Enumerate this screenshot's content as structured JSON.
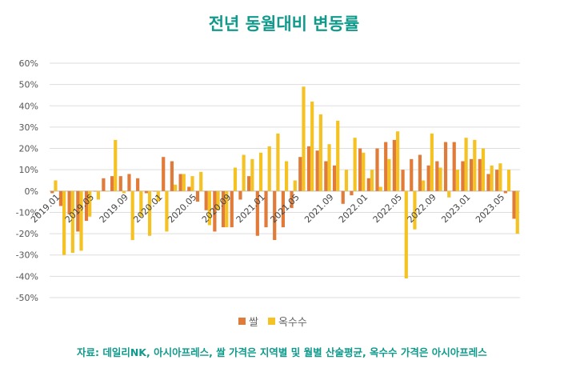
{
  "title": "전년 동월대비 변동률",
  "source": "자료: 데일리NK, 아시아프레스, 쌀 가격은 지역별 및 월별 산술평균, 옥수수 가격은 아시아프레스",
  "colors": {
    "rice": "#e07b39",
    "corn": "#f5c224",
    "title": "#109a8c",
    "grid": "#dddddd"
  },
  "chart_data": {
    "type": "bar",
    "title": "전년 동월대비 변동률",
    "y_ticks": [
      "60%",
      "50%",
      "40%",
      "30%",
      "20%",
      "10%",
      "0%",
      "-10%",
      "-20%",
      "-30%",
      "-40%",
      "-50%"
    ],
    "ylim": [
      -50,
      60
    ],
    "x_tick_labels": [
      "2019.01",
      "2019.05",
      "2019.09",
      "2020.01",
      "2020.05",
      "2020.09",
      "2021.01",
      "2021.05",
      "2021.09",
      "2022.01",
      "2022.05",
      "2022.09",
      "2023.01",
      "2023.05"
    ],
    "legend_position": "bottom",
    "categories": [
      "2019.01",
      "2019.02",
      "2019.03",
      "2019.04",
      "2019.05",
      "2019.06",
      "2019.07",
      "2019.08",
      "2019.09",
      "2019.10",
      "2019.11",
      "2019.12",
      "2020.01",
      "2020.02",
      "2020.03",
      "2020.04",
      "2020.05",
      "2020.06",
      "2020.07",
      "2020.08",
      "2020.09",
      "2020.10",
      "2020.11",
      "2020.12",
      "2021.01",
      "2021.02",
      "2021.03",
      "2021.04",
      "2021.05",
      "2021.06",
      "2021.07",
      "2021.08",
      "2021.09",
      "2021.10",
      "2021.11",
      "2021.12",
      "2022.01",
      "2022.02",
      "2022.03",
      "2022.04",
      "2022.05",
      "2022.06",
      "2022.07",
      "2022.08",
      "2022.09",
      "2022.10",
      "2022.11",
      "2022.12",
      "2023.01",
      "2023.02",
      "2023.03",
      "2023.04",
      "2023.05",
      "2023.06",
      "2023.07"
    ],
    "series": [
      {
        "name": "쌀",
        "values": [
          -1,
          -7,
          -11,
          -19,
          -14,
          0,
          6,
          7,
          7,
          8,
          6,
          -1,
          0,
          16,
          14,
          8,
          2,
          -5,
          -9,
          -19,
          -17,
          -17,
          -4,
          7,
          -21,
          -17,
          -23,
          -17,
          -8,
          16,
          21,
          19,
          14,
          12,
          -6,
          -2,
          20,
          6,
          20,
          23,
          24,
          10,
          15,
          17,
          12,
          14,
          23,
          23,
          14,
          15,
          15,
          8,
          10,
          -1,
          -13
        ]
      },
      {
        "name": "옥수수",
        "values": [
          5,
          -30,
          -29,
          -28,
          -12,
          -4,
          0,
          24,
          -1,
          -23,
          -12,
          -21,
          -5,
          -19,
          3,
          8,
          7,
          9,
          -16,
          -9,
          -17,
          11,
          17,
          15,
          18,
          21,
          27,
          14,
          5,
          49,
          42,
          36,
          22,
          33,
          10,
          25,
          18,
          10,
          2,
          15,
          28,
          -41,
          -18,
          5,
          27,
          11,
          -3,
          10,
          25,
          24,
          20,
          12,
          13,
          10,
          -20
        ]
      }
    ]
  }
}
